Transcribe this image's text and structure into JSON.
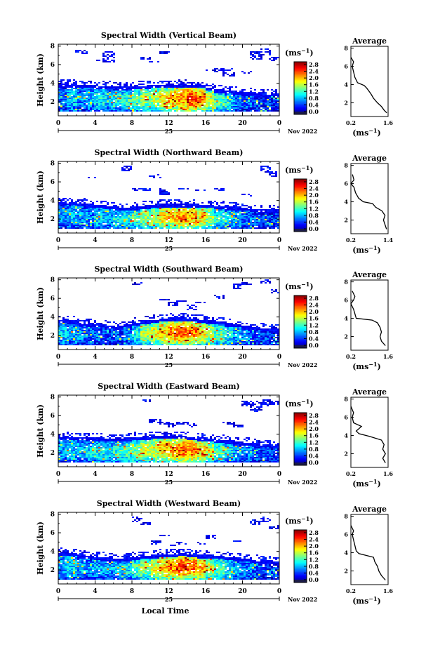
{
  "chart_data": [
    {
      "type": "heatmap",
      "title": "Spectral Width (Vertical Beam)",
      "ylabel": "Height (km)",
      "colorbar_unit": "(ms",
      "colorbar_unit_exp": "−1",
      "colorbar_ticks": [
        "2.8",
        "2.4",
        "2.0",
        "1.6",
        "1.2",
        "0.8",
        "0.4",
        "0.0"
      ],
      "colorbar_range": [
        0,
        2.8
      ],
      "x_ticks": [
        "0",
        "4",
        "8",
        "12",
        "16",
        "20",
        "0"
      ],
      "y_ticks": [
        "8",
        "6",
        "4",
        "2"
      ],
      "xlim": [
        0,
        24
      ],
      "ylim": [
        0.5,
        8.2
      ],
      "date_day": "25",
      "date_label": "Nov 2022",
      "profile": {
        "title": "Average",
        "y_ticks": [
          "8",
          "6",
          "4",
          "2"
        ],
        "x_ticks": [
          "0.2",
          "1.6"
        ],
        "xlabel": "(ms",
        "xlabel_exp": "−1",
        "xlim": [
          0.2,
          1.6
        ],
        "points": [
          [
            1.55,
            0.9
          ],
          [
            1.45,
            1.2
          ],
          [
            1.35,
            1.6
          ],
          [
            1.2,
            2.0
          ],
          [
            1.05,
            2.5
          ],
          [
            0.95,
            3.0
          ],
          [
            0.8,
            3.6
          ],
          [
            0.7,
            3.9
          ],
          [
            0.45,
            4.2
          ],
          [
            0.35,
            4.8
          ],
          [
            0.3,
            5.4
          ],
          [
            0.25,
            6.0
          ],
          [
            0.3,
            6.5
          ],
          [
            0.2,
            7.0
          ]
        ]
      },
      "field": {
        "base_top": [
          3.9,
          3.9,
          3.8,
          3.8,
          3.7,
          3.7,
          3.6,
          3.6,
          3.7,
          3.7,
          3.8,
          3.8,
          3.8,
          3.9,
          3.8,
          3.8,
          3.5,
          3.3,
          3.2,
          3.1,
          3.0,
          2.9,
          2.8,
          2.9
        ],
        "intensity": [
          0.6,
          0.9,
          0.7,
          0.8,
          1.0,
          0.9,
          1.0,
          1.1,
          1.2,
          1.4,
          1.5,
          1.7,
          1.9,
          2.0,
          2.2,
          2.0,
          1.6,
          1.2,
          0.9,
          0.7,
          0.6,
          0.5,
          0.5,
          0.4
        ],
        "upper": [
          [
            2,
            7.2,
            7.6
          ],
          [
            4,
            6.4,
            6.6
          ],
          [
            5,
            6.2,
            7.4
          ],
          [
            9,
            6.6,
            6.8
          ],
          [
            10,
            6.2,
            6.4
          ],
          [
            11,
            7.2,
            7.5
          ],
          [
            16,
            5.3,
            5.5
          ],
          [
            17,
            5.2,
            5.6
          ],
          [
            18,
            4.8,
            5.6
          ],
          [
            20,
            5.0,
            5.3
          ],
          [
            21,
            6.6,
            7.5
          ],
          [
            22,
            7.0,
            7.8
          ],
          [
            23,
            6.4,
            6.8
          ]
        ]
      }
    },
    {
      "type": "heatmap",
      "title": "Spectral Width (Northward Beam)",
      "ylabel": "Height (km)",
      "colorbar_unit": "(ms",
      "colorbar_unit_exp": "−1",
      "colorbar_ticks": [
        "2.8",
        "2.4",
        "2.0",
        "1.6",
        "1.2",
        "0.8",
        "0.4",
        "0.0"
      ],
      "colorbar_range": [
        0,
        2.8
      ],
      "x_ticks": [
        "0",
        "4",
        "8",
        "12",
        "16",
        "20",
        "0"
      ],
      "y_ticks": [
        "8",
        "6",
        "4",
        "2"
      ],
      "xlim": [
        0,
        24
      ],
      "ylim": [
        0.5,
        8.2
      ],
      "date_day": "25",
      "date_label": "Nov 2022",
      "profile": {
        "title": "Average",
        "y_ticks": [
          "8",
          "6",
          "4",
          "2"
        ],
        "x_ticks": [
          "0.2",
          "1.4"
        ],
        "xlabel": "(ms",
        "xlabel_exp": "−1",
        "xlim": [
          0.2,
          1.4
        ],
        "points": [
          [
            1.35,
            1.0
          ],
          [
            1.3,
            1.5
          ],
          [
            1.25,
            2.0
          ],
          [
            1.3,
            2.5
          ],
          [
            1.2,
            3.0
          ],
          [
            1.0,
            3.4
          ],
          [
            0.9,
            3.8
          ],
          [
            0.6,
            4.0
          ],
          [
            0.45,
            4.4
          ],
          [
            0.35,
            5.0
          ],
          [
            0.3,
            5.6
          ],
          [
            0.2,
            6.0
          ],
          [
            0.3,
            6.4
          ],
          [
            0.25,
            7.0
          ]
        ]
      },
      "field": {
        "base_top": [
          3.8,
          3.8,
          3.7,
          3.6,
          3.5,
          3.4,
          3.3,
          3.2,
          3.3,
          3.4,
          3.5,
          3.6,
          3.6,
          3.6,
          3.6,
          3.5,
          3.5,
          3.4,
          3.3,
          3.3,
          3.2,
          3.1,
          3.0,
          3.0
        ],
        "intensity": [
          0.7,
          0.8,
          0.7,
          0.7,
          0.9,
          0.8,
          1.0,
          1.1,
          1.2,
          1.4,
          1.5,
          1.7,
          1.8,
          2.0,
          1.9,
          1.7,
          1.4,
          1.1,
          0.9,
          0.8,
          0.6,
          0.6,
          0.5,
          0.5
        ],
        "upper": [
          [
            3,
            6.4,
            6.6
          ],
          [
            7,
            7.2,
            7.8
          ],
          [
            8,
            5.0,
            5.4
          ],
          [
            9,
            5.0,
            5.3
          ],
          [
            10,
            6.4,
            6.8
          ],
          [
            11,
            4.6,
            5.4
          ],
          [
            13,
            5.2,
            5.4
          ],
          [
            15,
            5.0,
            5.2
          ],
          [
            17,
            5.1,
            5.3
          ],
          [
            20,
            4.4,
            4.8
          ],
          [
            22,
            7.0,
            7.8
          ],
          [
            23,
            6.5,
            7.2
          ]
        ]
      }
    },
    {
      "type": "heatmap",
      "title": "Spectral Width (Southward Beam)",
      "ylabel": "Height (km)",
      "colorbar_unit": "(ms",
      "colorbar_unit_exp": "−1",
      "colorbar_ticks": [
        "2.8",
        "2.4",
        "2.0",
        "1.6",
        "1.2",
        "0.8",
        "0.4",
        "0.0"
      ],
      "colorbar_range": [
        0,
        2.8
      ],
      "x_ticks": [
        "0",
        "4",
        "8",
        "12",
        "16",
        "20",
        "0"
      ],
      "y_ticks": [
        "8",
        "6",
        "4",
        "2"
      ],
      "xlim": [
        0,
        24
      ],
      "ylim": [
        0.5,
        8.2
      ],
      "date_day": "25",
      "date_label": "Nov 2022",
      "profile": {
        "title": "Average",
        "y_ticks": [
          "8",
          "6",
          "4",
          "2"
        ],
        "x_ticks": [
          "0.2",
          "1.6"
        ],
        "xlabel": "(ms",
        "xlabel_exp": "−1",
        "xlim": [
          0.2,
          1.6
        ],
        "points": [
          [
            1.5,
            1.0
          ],
          [
            1.35,
            1.5
          ],
          [
            1.3,
            2.0
          ],
          [
            1.35,
            2.5
          ],
          [
            1.3,
            3.0
          ],
          [
            1.2,
            3.5
          ],
          [
            1.0,
            3.8
          ],
          [
            0.4,
            4.0
          ],
          [
            0.35,
            4.5
          ],
          [
            0.3,
            5.0
          ],
          [
            0.2,
            5.6
          ],
          [
            0.3,
            6.0
          ],
          [
            0.35,
            6.4
          ],
          [
            0.25,
            7.0
          ]
        ]
      },
      "field": {
        "base_top": [
          3.7,
          3.6,
          3.4,
          3.3,
          3.2,
          3.1,
          3.0,
          3.2,
          3.4,
          3.6,
          3.7,
          3.8,
          3.9,
          3.9,
          3.8,
          3.7,
          3.6,
          3.5,
          3.3,
          3.2,
          3.0,
          2.9,
          2.8,
          2.7
        ],
        "intensity": [
          0.9,
          0.8,
          0.7,
          0.6,
          0.6,
          0.5,
          0.5,
          0.7,
          1.0,
          1.4,
          1.6,
          1.8,
          2.0,
          2.1,
          2.0,
          1.8,
          1.5,
          1.2,
          1.0,
          0.8,
          0.7,
          0.6,
          0.5,
          0.4
        ],
        "upper": [
          [
            8,
            7.4,
            7.8
          ],
          [
            11,
            5.8,
            6.0
          ],
          [
            12,
            5.2,
            5.6
          ],
          [
            13,
            5.6,
            5.8
          ],
          [
            14,
            4.8,
            5.4
          ],
          [
            15,
            5.4,
            5.6
          ],
          [
            17,
            6.0,
            6.4
          ],
          [
            19,
            7.0,
            7.6
          ],
          [
            20,
            7.4,
            7.8
          ],
          [
            22,
            7.6,
            8.0
          ],
          [
            23,
            6.6,
            7.0
          ]
        ]
      }
    },
    {
      "type": "heatmap",
      "title": "Spectral Width (Eastward Beam)",
      "ylabel": "Height (km)",
      "colorbar_unit": "(ms",
      "colorbar_unit_exp": "−1",
      "colorbar_ticks": [
        "2.8",
        "2.4",
        "2.0",
        "1.6",
        "1.2",
        "0.8",
        "0.4",
        "0.0"
      ],
      "colorbar_range": [
        0,
        2.8
      ],
      "x_ticks": [
        "0",
        "4",
        "8",
        "12",
        "16",
        "20",
        "0"
      ],
      "y_ticks": [
        "8",
        "6",
        "4",
        "2"
      ],
      "xlim": [
        0,
        24
      ],
      "ylim": [
        0.5,
        8.2
      ],
      "date_day": "25",
      "date_label": "Nov 2022",
      "profile": {
        "title": "Average",
        "y_ticks": [
          "8",
          "6",
          "4",
          "2"
        ],
        "x_ticks": [
          "0.2",
          "1.6"
        ],
        "xlabel": "(ms",
        "xlabel_exp": "−1",
        "xlim": [
          0.2,
          1.6
        ],
        "points": [
          [
            1.5,
            1.0
          ],
          [
            1.4,
            1.5
          ],
          [
            1.5,
            2.0
          ],
          [
            1.4,
            2.5
          ],
          [
            1.45,
            3.0
          ],
          [
            1.35,
            3.5
          ],
          [
            0.9,
            3.9
          ],
          [
            0.5,
            4.2
          ],
          [
            0.4,
            4.5
          ],
          [
            0.6,
            5.0
          ],
          [
            0.3,
            5.4
          ],
          [
            0.25,
            6.0
          ],
          [
            0.3,
            6.5
          ],
          [
            0.2,
            7.2
          ]
        ]
      },
      "field": {
        "base_top": [
          3.8,
          3.7,
          3.7,
          3.6,
          3.6,
          3.5,
          3.5,
          3.6,
          3.7,
          3.7,
          3.8,
          3.8,
          3.8,
          3.8,
          3.7,
          3.6,
          3.5,
          3.4,
          3.3,
          3.2,
          3.1,
          3.0,
          2.9,
          2.8
        ],
        "intensity": [
          0.8,
          0.9,
          0.8,
          0.9,
          1.0,
          1.0,
          1.1,
          1.2,
          1.3,
          1.5,
          1.6,
          1.8,
          1.9,
          2.1,
          2.0,
          1.8,
          1.5,
          1.2,
          1.0,
          0.8,
          0.7,
          0.6,
          0.5,
          0.5
        ],
        "upper": [
          [
            9,
            7.4,
            7.8
          ],
          [
            10,
            5.2,
            5.6
          ],
          [
            11,
            5.0,
            5.3
          ],
          [
            12,
            4.8,
            5.2
          ],
          [
            13,
            5.0,
            5.4
          ],
          [
            14,
            4.8,
            5.2
          ],
          [
            18,
            5.0,
            5.4
          ],
          [
            19,
            4.8,
            5.0
          ],
          [
            20,
            7.0,
            7.6
          ],
          [
            21,
            6.4,
            7.6
          ],
          [
            22,
            7.0,
            7.8
          ],
          [
            23,
            7.2,
            7.6
          ]
        ]
      }
    },
    {
      "type": "heatmap",
      "title": "Spectral Width (Westward Beam)",
      "ylabel": "Height (km)",
      "colorbar_unit": "(ms",
      "colorbar_unit_exp": "−1",
      "colorbar_ticks": [
        "2.8",
        "2.4",
        "2.0",
        "1.6",
        "1.2",
        "0.8",
        "0.4",
        "0.0"
      ],
      "colorbar_range": [
        0,
        2.8
      ],
      "x_ticks": [
        "0",
        "4",
        "8",
        "12",
        "16",
        "20",
        "0"
      ],
      "y_ticks": [
        "8",
        "6",
        "4",
        "2"
      ],
      "xlim": [
        0,
        24
      ],
      "ylim": [
        0.5,
        8.2
      ],
      "date_day": "25",
      "date_label": "Nov 2022",
      "xlabel": "Local Time",
      "profile": {
        "title": "Average",
        "y_ticks": [
          "8",
          "6",
          "4",
          "2"
        ],
        "x_ticks": [
          "0.2",
          "1.6"
        ],
        "xlabel": "(ms",
        "xlabel_exp": "−1",
        "xlim": [
          0.2,
          1.6
        ],
        "points": [
          [
            1.5,
            1.0
          ],
          [
            1.35,
            1.5
          ],
          [
            1.25,
            2.0
          ],
          [
            1.2,
            2.5
          ],
          [
            1.1,
            3.0
          ],
          [
            1.05,
            3.5
          ],
          [
            0.5,
            3.9
          ],
          [
            0.4,
            4.2
          ],
          [
            0.35,
            4.8
          ],
          [
            0.3,
            5.4
          ],
          [
            0.25,
            6.0
          ],
          [
            0.3,
            6.4
          ],
          [
            0.2,
            7.0
          ]
        ]
      },
      "field": {
        "base_top": [
          3.9,
          3.8,
          3.6,
          3.5,
          3.4,
          3.3,
          3.2,
          3.3,
          3.4,
          3.5,
          3.6,
          3.7,
          3.7,
          3.8,
          3.7,
          3.6,
          3.6,
          3.5,
          3.4,
          3.3,
          3.2,
          3.1,
          3.0,
          2.9
        ],
        "intensity": [
          0.8,
          0.9,
          0.8,
          0.7,
          0.8,
          0.8,
          0.9,
          1.0,
          1.2,
          1.4,
          1.6,
          1.8,
          2.0,
          2.2,
          2.1,
          1.9,
          1.6,
          1.3,
          1.0,
          0.8,
          0.7,
          0.6,
          0.5,
          0.5
        ],
        "upper": [
          [
            8,
            7.2,
            7.8
          ],
          [
            9,
            6.8,
            7.2
          ],
          [
            10,
            4.8,
            5.2
          ],
          [
            11,
            5.6,
            5.8
          ],
          [
            12,
            4.6,
            4.8
          ],
          [
            13,
            4.8,
            5.0
          ],
          [
            15,
            4.8,
            5.0
          ],
          [
            16,
            5.4,
            5.8
          ],
          [
            19,
            5.0,
            5.2
          ],
          [
            21,
            6.8,
            7.4
          ],
          [
            22,
            7.2,
            7.8
          ],
          [
            23,
            6.4,
            6.8
          ]
        ]
      }
    }
  ]
}
